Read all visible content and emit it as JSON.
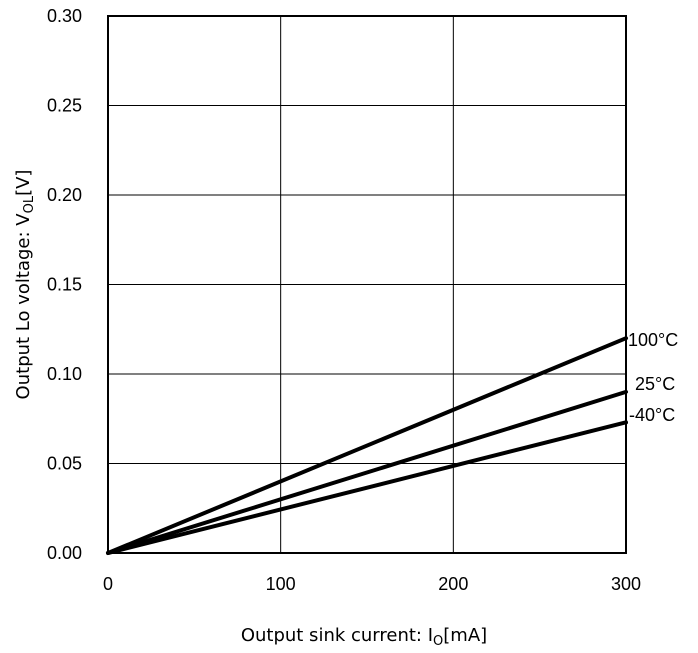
{
  "chart_data": {
    "type": "line",
    "title": "",
    "xlabel": "Output sink current: I",
    "xlabel_sub": "O",
    "xlabel_unit": "[mA]",
    "ylabel": "Output Lo voltage: V",
    "ylabel_sub": "OL",
    "ylabel_unit": "[V]",
    "xlim": [
      0,
      300
    ],
    "ylim": [
      0,
      0.3
    ],
    "x_ticks": [
      0,
      100,
      200,
      300
    ],
    "x_tick_labels": [
      "0",
      "100",
      "200",
      "300"
    ],
    "y_ticks": [
      0,
      0.05,
      0.1,
      0.15,
      0.2,
      0.25,
      0.3
    ],
    "y_tick_labels": [
      "0.00",
      "0.05",
      "0.10",
      "0.15",
      "0.20",
      "0.25",
      "0.30"
    ],
    "grid": true,
    "legend": "inline labels at right end of lines",
    "series": [
      {
        "name": "100°C",
        "x": [
          0,
          300
        ],
        "y": [
          0,
          0.12
        ]
      },
      {
        "name": "25°C",
        "x": [
          0,
          300
        ],
        "y": [
          0,
          0.09
        ]
      },
      {
        "name": "-40°C",
        "x": [
          0,
          300
        ],
        "y": [
          0,
          0.073
        ]
      }
    ]
  }
}
